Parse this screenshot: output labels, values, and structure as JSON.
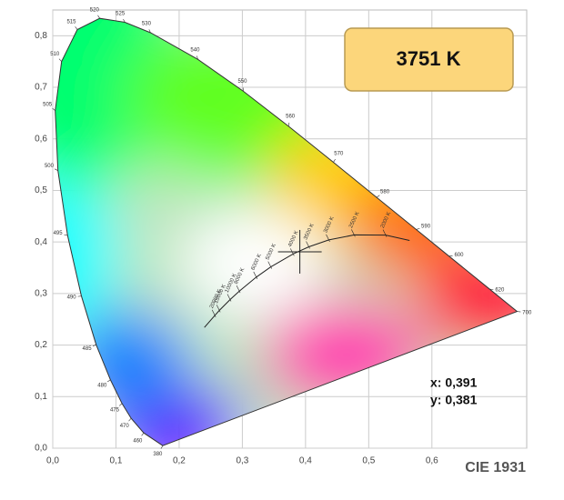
{
  "chart_data": {
    "type": "scatter",
    "title": "CIE 1931",
    "cct_label": "3751 K",
    "point": {
      "x": 0.391,
      "y": 0.381,
      "x_label": "x: 0,391",
      "y_label": "y: 0,381"
    },
    "xlim": [
      0,
      0.75
    ],
    "ylim": [
      0,
      0.85
    ],
    "xticks": [
      {
        "value": 0,
        "label": "0,0"
      },
      {
        "value": 0.1,
        "label": "0,1"
      },
      {
        "value": 0.2,
        "label": "0,2"
      },
      {
        "value": 0.3,
        "label": "0,3"
      },
      {
        "value": 0.4,
        "label": "0,4"
      },
      {
        "value": 0.5,
        "label": "0,5"
      },
      {
        "value": 0.6,
        "label": "0,6"
      }
    ],
    "yticks": [
      {
        "value": 0,
        "label": "0,0"
      },
      {
        "value": 0.1,
        "label": "0,1"
      },
      {
        "value": 0.2,
        "label": "0,2"
      },
      {
        "value": 0.3,
        "label": "0,3"
      },
      {
        "value": 0.4,
        "label": "0,4"
      },
      {
        "value": 0.5,
        "label": "0,5"
      },
      {
        "value": 0.6,
        "label": "0,6"
      },
      {
        "value": 0.7,
        "label": "0,7"
      },
      {
        "value": 0.8,
        "label": "0,8"
      }
    ],
    "grid": true,
    "spectral_locus": {
      "x": [
        0.1741,
        0.144,
        0.1241,
        0.1096,
        0.0913,
        0.0687,
        0.0454,
        0.0235,
        0.0082,
        0.0039,
        0.0139,
        0.0389,
        0.0743,
        0.1142,
        0.1547,
        0.2296,
        0.3016,
        0.3731,
        0.4441,
        0.5125,
        0.5752,
        0.627,
        0.6915,
        0.7347
      ],
      "y": [
        0.005,
        0.0297,
        0.0578,
        0.0868,
        0.1327,
        0.2007,
        0.295,
        0.4127,
        0.5384,
        0.6548,
        0.7502,
        0.812,
        0.8338,
        0.8262,
        0.8059,
        0.7543,
        0.6923,
        0.6245,
        0.5547,
        0.4866,
        0.4242,
        0.3725,
        0.3083,
        0.2653
      ],
      "labels": [
        "380",
        "460",
        "470",
        "475",
        "480",
        "485",
        "490",
        "495",
        "500",
        "505",
        "510",
        "515",
        "520",
        "525",
        "530",
        "540",
        "550",
        "560",
        "570",
        "580",
        "590",
        "600",
        "620",
        "700"
      ]
    },
    "planckian_locus": {
      "x": [
        0.5646,
        0.5269,
        0.477,
        0.4369,
        0.4053,
        0.3805,
        0.3451,
        0.3221,
        0.2952,
        0.2807,
        0.2637,
        0.2565,
        0.2399
      ],
      "y": [
        0.4029,
        0.4133,
        0.4137,
        0.4041,
        0.3907,
        0.3768,
        0.3516,
        0.3318,
        0.3048,
        0.2883,
        0.2673,
        0.2577,
        0.2342
      ],
      "labels": [
        null,
        "2000 K",
        "2500 K",
        "3000 K",
        "3500 K",
        "4000 K",
        "5000 K",
        "6000 K",
        "8000 K",
        "10000 K",
        "15000 K",
        "20000 K",
        null
      ]
    }
  }
}
